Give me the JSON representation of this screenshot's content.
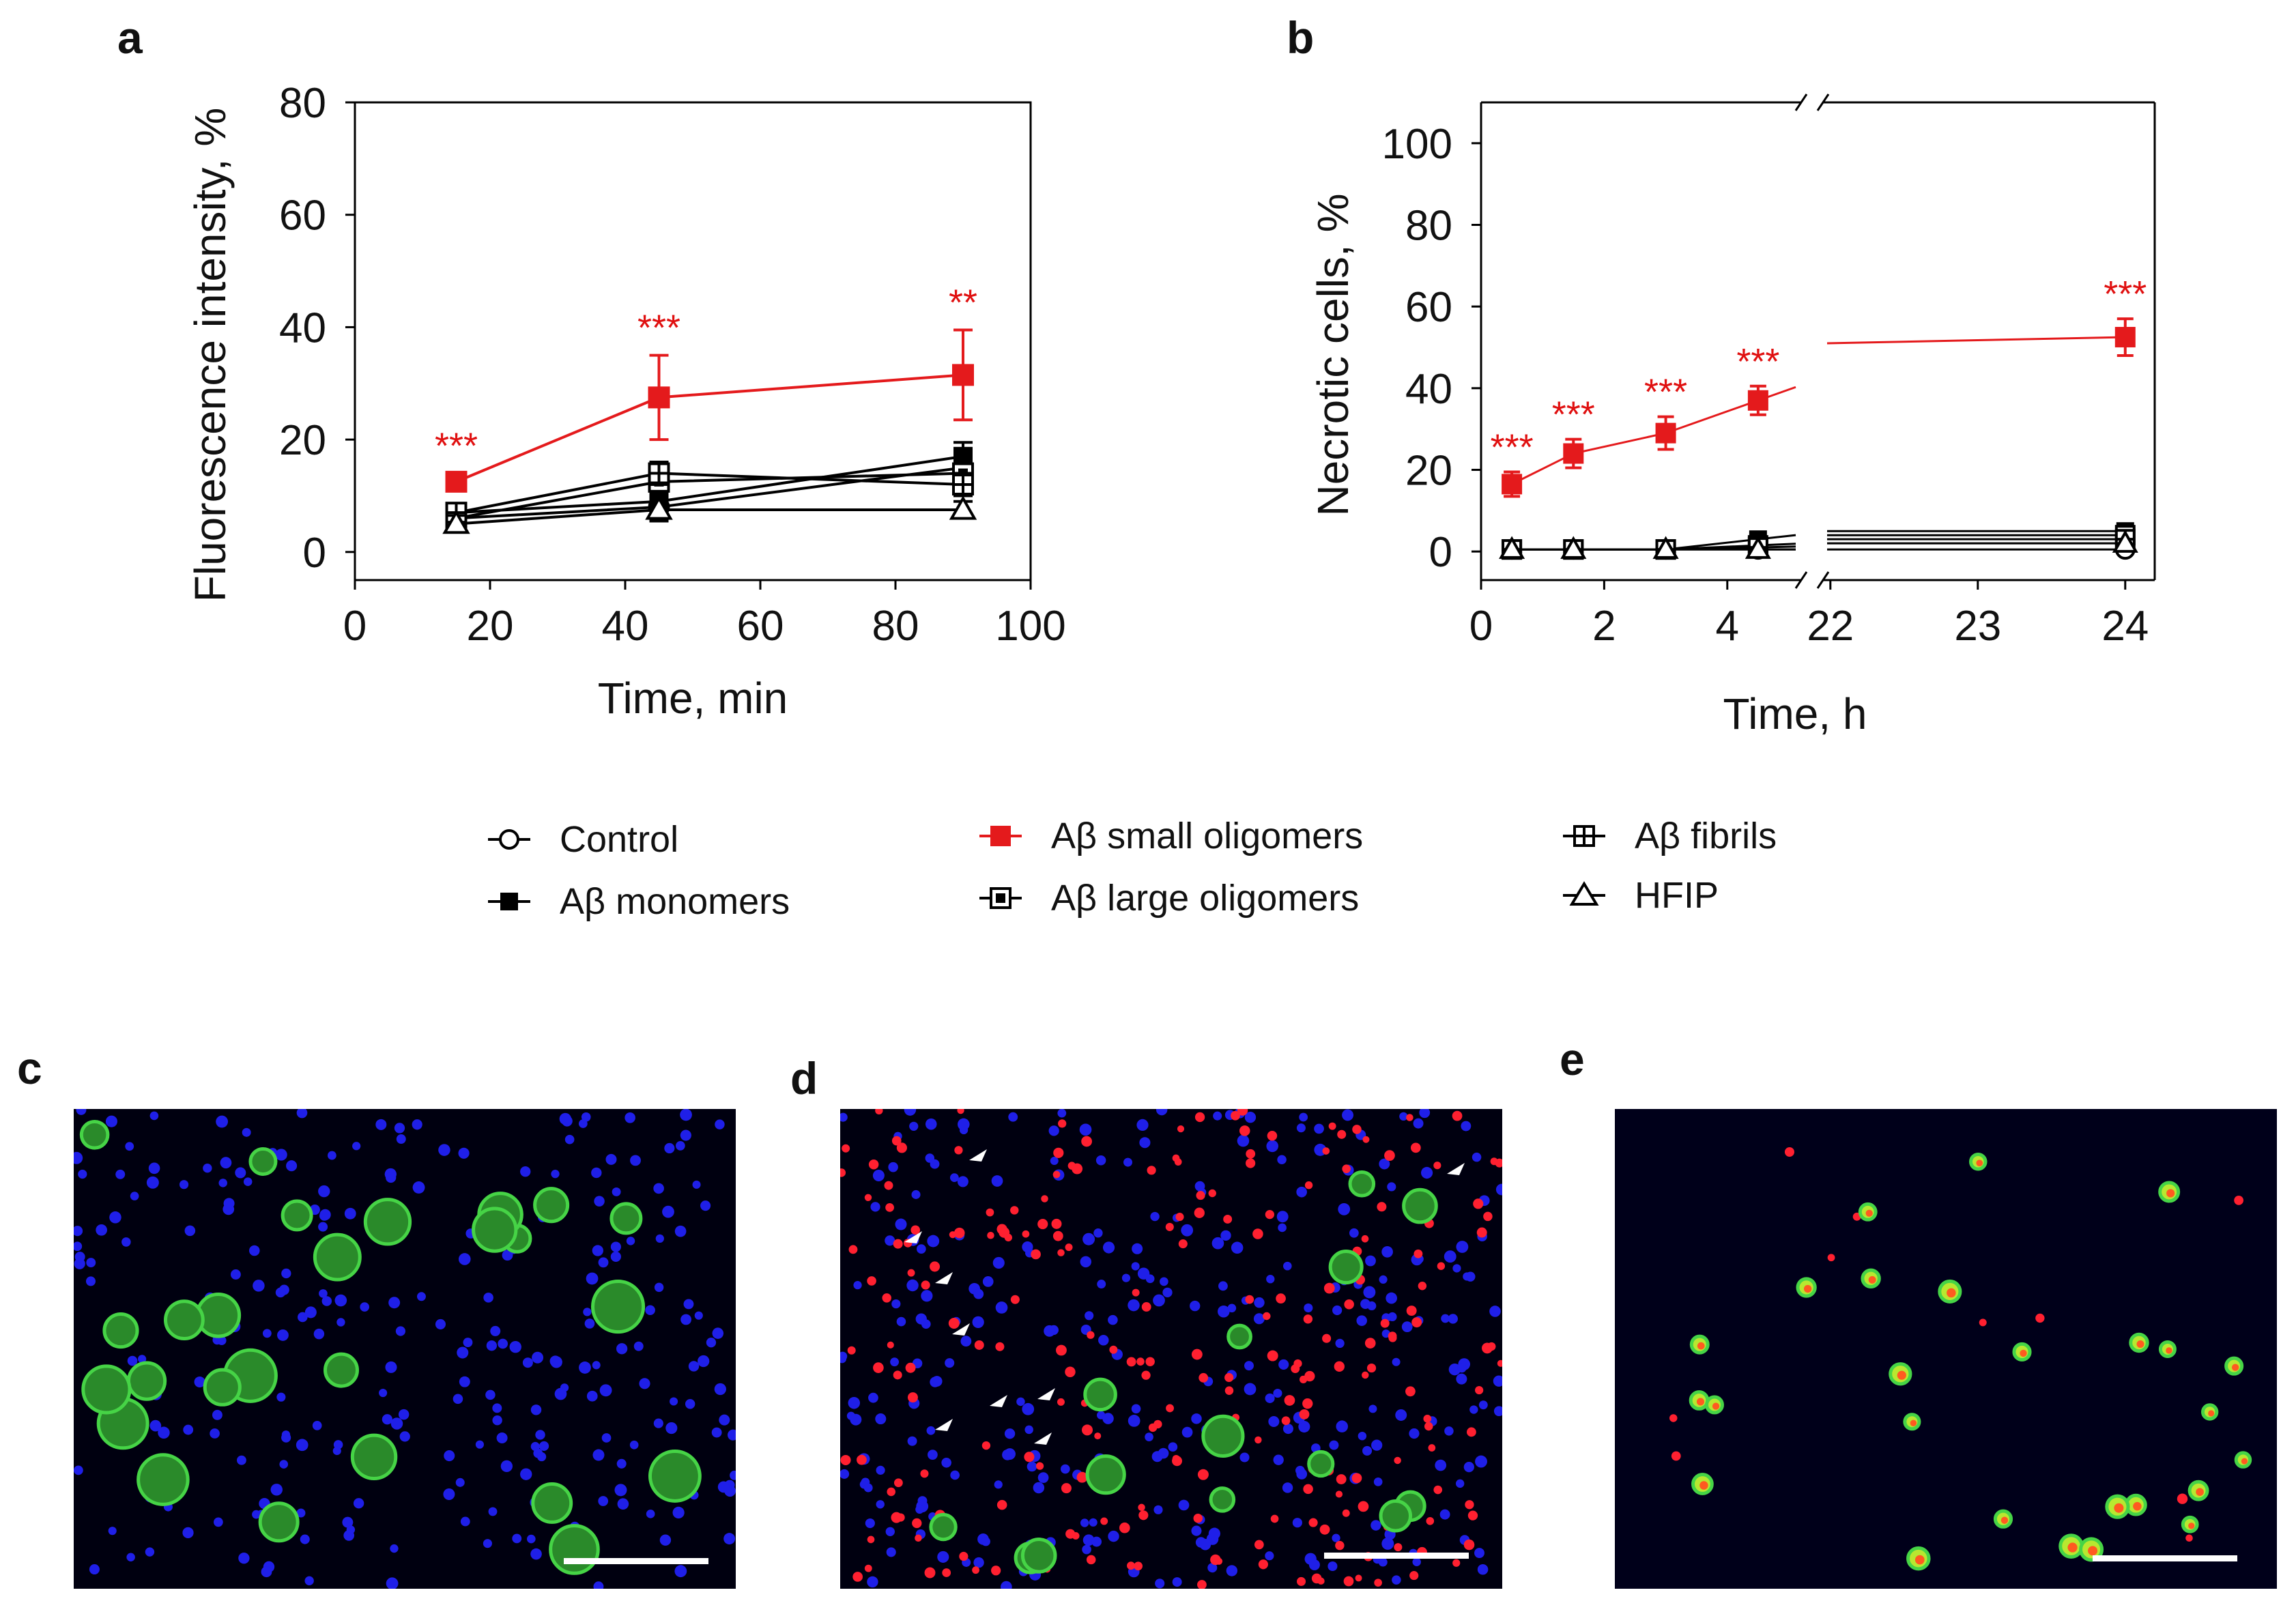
{
  "figure": {
    "panel_labels": [
      "a",
      "b",
      "c",
      "d",
      "e"
    ]
  },
  "legend": {
    "items": [
      {
        "label": "Control",
        "marker": "circle-open",
        "color": "#000000"
      },
      {
        "label": "Aβ monomers",
        "marker": "square-filled",
        "color": "#000000"
      },
      {
        "label": "Aβ small oligomers",
        "marker": "square-filled",
        "color": "#e41a1c"
      },
      {
        "label": "Aβ large oligomers",
        "marker": "square-dotted",
        "color": "#000000"
      },
      {
        "label": "Aβ fibrils",
        "marker": "square-cross",
        "color": "#000000"
      },
      {
        "label": "HFIP",
        "marker": "triangle-open",
        "color": "#000000"
      }
    ]
  },
  "chart_data": [
    {
      "id": "a",
      "type": "line",
      "title": "",
      "xlabel": "Time, min",
      "ylabel": "Fluorescence intensity, %",
      "xlim": [
        0,
        100
      ],
      "ylim": [
        -5,
        80
      ],
      "xticks": [
        0,
        20,
        40,
        60,
        80,
        100
      ],
      "yticks": [
        0,
        20,
        40,
        60,
        80
      ],
      "x": [
        15,
        45,
        90
      ],
      "series": [
        {
          "name": "Control",
          "marker": "circle-open",
          "color": "#000000",
          "values": [
            6,
            8,
            15
          ],
          "err": [
            1.5,
            2,
            2
          ]
        },
        {
          "name": "Aβ monomers",
          "marker": "square-filled",
          "color": "#000000",
          "values": [
            7,
            9,
            17
          ],
          "err": [
            1.5,
            2,
            2.5
          ]
        },
        {
          "name": "Aβ small oligomers",
          "marker": "square-filled",
          "color": "#e41a1c",
          "values": [
            12.5,
            27.5,
            31.5
          ],
          "err": [
            1.5,
            7.5,
            8
          ]
        },
        {
          "name": "Aβ large oligomers",
          "marker": "square-dotted",
          "color": "#000000",
          "values": [
            6,
            12.5,
            14
          ],
          "err": [
            1.5,
            2,
            2.5
          ]
        },
        {
          "name": "Aβ fibrils",
          "marker": "square-cross",
          "color": "#000000",
          "values": [
            7,
            14,
            12
          ],
          "err": [
            1.5,
            2,
            2
          ]
        },
        {
          "name": "HFIP",
          "marker": "triangle-open",
          "color": "#000000",
          "values": [
            5,
            7.5,
            7.5
          ],
          "err": [
            1.5,
            2,
            1.5
          ]
        }
      ],
      "annotations": [
        {
          "x": 15,
          "text": "***"
        },
        {
          "x": 45,
          "text": "***"
        },
        {
          "x": 90,
          "text": "**"
        }
      ]
    },
    {
      "id": "b",
      "type": "line",
      "title": "",
      "xlabel": "Time, h",
      "ylabel": "Necrotic cells, %",
      "ylim": [
        -7,
        110
      ],
      "yticks": [
        0,
        20,
        40,
        60,
        80,
        100
      ],
      "x_segments": [
        {
          "range": [
            0,
            5.2
          ],
          "ticks": [
            0,
            2,
            4
          ]
        },
        {
          "range": [
            21.95,
            24.2
          ],
          "ticks": [
            22,
            23,
            24
          ]
        }
      ],
      "x": [
        0.5,
        1.5,
        3,
        4.5,
        24
      ],
      "series": [
        {
          "name": "Control",
          "marker": "circle-open",
          "color": "#000000",
          "values": [
            0.5,
            0.5,
            0.5,
            0.5,
            0.5
          ]
        },
        {
          "name": "Aβ monomers",
          "marker": "square-filled",
          "color": "#000000",
          "values": [
            0.5,
            0.5,
            0.5,
            3,
            5
          ]
        },
        {
          "name": "Aβ small oligomers",
          "marker": "square-filled",
          "color": "#e41a1c",
          "values": [
            16.5,
            24,
            29,
            37,
            52.5
          ],
          "err": [
            3,
            3.5,
            4,
            3.5,
            4.5
          ]
        },
        {
          "name": "Aβ large oligomers",
          "marker": "square-dotted",
          "color": "#000000",
          "values": [
            0.5,
            0.5,
            0.5,
            1.5,
            4
          ]
        },
        {
          "name": "Aβ fibrils",
          "marker": "square-cross",
          "color": "#000000",
          "values": [
            0.5,
            0.5,
            0.5,
            1,
            3
          ]
        },
        {
          "name": "HFIP",
          "marker": "triangle-open",
          "color": "#000000",
          "values": [
            0.5,
            0.5,
            0.5,
            0.5,
            2
          ]
        }
      ],
      "annotations": [
        {
          "x": 0.5,
          "text": "***"
        },
        {
          "x": 1.5,
          "text": "***"
        },
        {
          "x": 3,
          "text": "***"
        },
        {
          "x": 4.5,
          "text": "***"
        },
        {
          "x": 24,
          "text": "***"
        }
      ]
    }
  ],
  "micrographs": [
    {
      "id": "c",
      "description_color": "#000010"
    },
    {
      "id": "d",
      "description_color": "#000010"
    },
    {
      "id": "e",
      "description_color": "#00001a"
    }
  ]
}
